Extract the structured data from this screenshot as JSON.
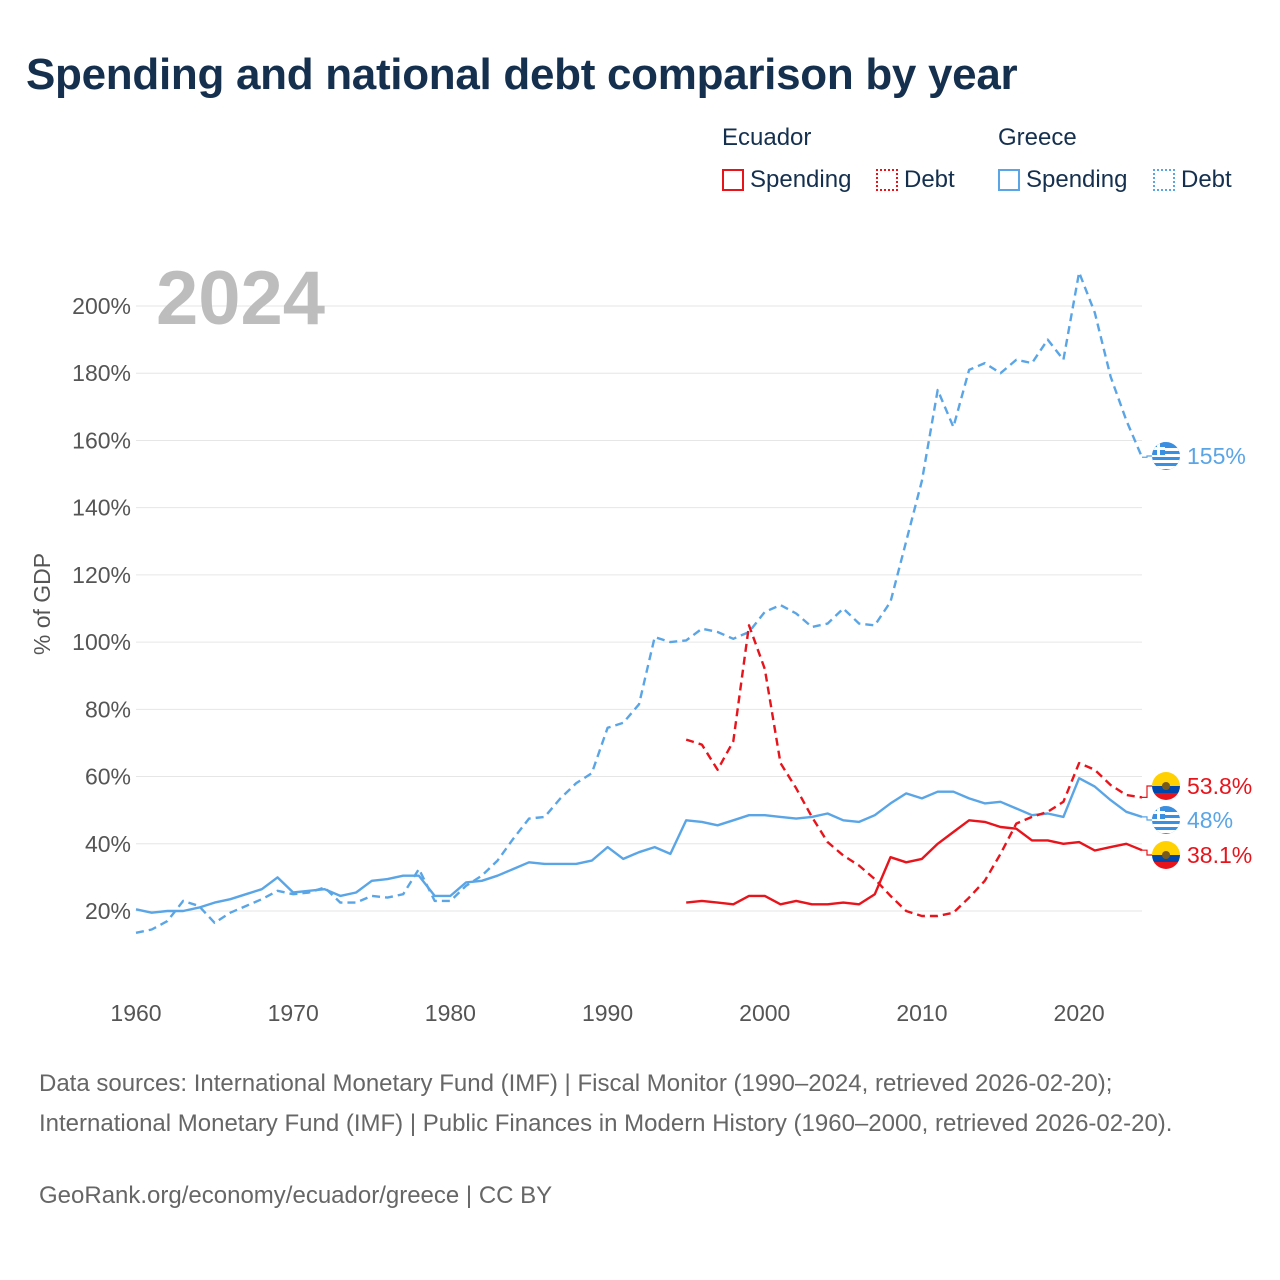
{
  "title": "Spending and national debt comparison by year",
  "legend": {
    "groups": [
      {
        "country": "Ecuador",
        "color": "#e8141c",
        "items": [
          {
            "label": "Spending",
            "style": "solid"
          },
          {
            "label": "Debt",
            "style": "dotted"
          }
        ]
      },
      {
        "country": "Greece",
        "color": "#5aa5e6",
        "items": [
          {
            "label": "Spending",
            "style": "solid"
          },
          {
            "label": "Debt",
            "style": "dotted"
          }
        ]
      }
    ]
  },
  "current_year": "2024",
  "sources": "Data sources: International Monetary Fund (IMF) | Fiscal Monitor (1990–2024, retrieved 2026-02-20); International Monetary Fund (IMF) | Public Finances in Modern History (1960–2000, retrieved 2026-02-20).",
  "credit": "GeoRank.org/economy/ecuador/greece | CC BY",
  "chart_data": {
    "type": "line",
    "title": "Spending and national debt comparison by year",
    "xlabel": "",
    "ylabel": "% of GDP",
    "xlim": [
      1960,
      2024
    ],
    "ylim": [
      0,
      210
    ],
    "x_ticks": [
      1960,
      1970,
      1980,
      1990,
      2000,
      2010,
      2020
    ],
    "y_ticks": [
      20,
      40,
      60,
      80,
      100,
      120,
      140,
      160,
      180,
      200
    ],
    "y_tick_labels": [
      "20%",
      "40%",
      "60%",
      "80%",
      "100%",
      "120%",
      "140%",
      "160%",
      "180%",
      "200%"
    ],
    "grid": "horizontal",
    "series": [
      {
        "name": "Greece Debt",
        "country": "Greece",
        "measure": "Debt",
        "color": "#5aa5e6",
        "dash": "dashed",
        "end_label": "155%",
        "x": [
          1960,
          1961,
          1962,
          1963,
          1964,
          1965,
          1966,
          1967,
          1968,
          1969,
          1970,
          1971,
          1972,
          1973,
          1974,
          1975,
          1976,
          1977,
          1978,
          1979,
          1980,
          1981,
          1982,
          1983,
          1984,
          1985,
          1986,
          1987,
          1988,
          1989,
          1990,
          1991,
          1992,
          1993,
          1994,
          1995,
          1996,
          1997,
          1998,
          1999,
          2000,
          2001,
          2002,
          2003,
          2004,
          2005,
          2006,
          2007,
          2008,
          2009,
          2010,
          2011,
          2012,
          2013,
          2014,
          2015,
          2016,
          2017,
          2018,
          2019,
          2020,
          2021,
          2022,
          2023,
          2024
        ],
        "y": [
          13.5,
          14.5,
          17,
          23,
          21.5,
          16.5,
          19.5,
          21.5,
          23.5,
          26,
          25,
          25.5,
          27,
          22.5,
          22.5,
          24.5,
          24,
          25,
          32.5,
          23,
          23,
          27.5,
          30.5,
          35,
          41.5,
          47.5,
          48,
          53.5,
          58,
          61,
          74.5,
          76,
          81.5,
          101.5,
          100,
          100.5,
          104,
          103,
          101,
          103,
          109,
          111,
          108.5,
          104.5,
          105.5,
          110,
          105.5,
          105,
          112,
          130,
          148,
          175,
          164,
          181,
          183,
          180,
          184,
          183,
          190,
          184,
          210,
          198,
          179,
          166,
          155
        ]
      },
      {
        "name": "Greece Spending",
        "country": "Greece",
        "measure": "Spending",
        "color": "#5aa5e6",
        "dash": "solid",
        "end_label": "48%",
        "x": [
          1960,
          1961,
          1962,
          1963,
          1964,
          1965,
          1966,
          1967,
          1968,
          1969,
          1970,
          1971,
          1972,
          1973,
          1974,
          1975,
          1976,
          1977,
          1978,
          1979,
          1980,
          1981,
          1982,
          1983,
          1984,
          1985,
          1986,
          1987,
          1988,
          1989,
          1990,
          1991,
          1992,
          1993,
          1994,
          1995,
          1996,
          1997,
          1998,
          1999,
          2000,
          2001,
          2002,
          2003,
          2004,
          2005,
          2006,
          2007,
          2008,
          2009,
          2010,
          2011,
          2012,
          2013,
          2014,
          2015,
          2016,
          2017,
          2018,
          2019,
          2020,
          2021,
          2022,
          2023,
          2024
        ],
        "y": [
          20.5,
          19.5,
          20,
          20,
          21,
          22.5,
          23.5,
          25,
          26.5,
          30,
          25.5,
          26,
          26.5,
          24.5,
          25.5,
          29,
          29.5,
          30.5,
          30.5,
          24.5,
          24.5,
          28.5,
          29,
          30.5,
          32.5,
          34.5,
          34,
          34,
          34,
          35,
          39,
          35.5,
          37.5,
          39,
          37,
          47,
          46.5,
          45.5,
          47,
          48.5,
          48.5,
          48,
          47.5,
          48,
          49,
          47,
          46.5,
          48.5,
          52,
          55,
          53.5,
          55.5,
          55.5,
          53.5,
          52,
          52.5,
          50.5,
          48.5,
          49,
          48,
          59.5,
          57,
          53,
          49.5,
          48
        ]
      },
      {
        "name": "Ecuador Debt",
        "country": "Ecuador",
        "measure": "Debt",
        "color": "#e8141c",
        "dash": "dashed",
        "end_label": "53.8%",
        "x": [
          1995,
          1996,
          1997,
          1998,
          1999,
          2000,
          2001,
          2002,
          2003,
          2004,
          2005,
          2006,
          2007,
          2008,
          2009,
          2010,
          2011,
          2012,
          2013,
          2014,
          2015,
          2016,
          2017,
          2018,
          2019,
          2020,
          2021,
          2022,
          2023,
          2024
        ],
        "y": [
          71,
          69.5,
          62,
          70.5,
          105,
          92,
          64,
          56.5,
          48,
          40.5,
          36.5,
          33.5,
          29.5,
          24.5,
          20,
          18.5,
          18.5,
          19.5,
          24,
          29,
          37,
          46,
          48,
          49.5,
          52.5,
          64,
          62,
          57.5,
          54.5,
          53.8
        ]
      },
      {
        "name": "Ecuador Spending",
        "country": "Ecuador",
        "measure": "Spending",
        "color": "#e8141c",
        "dash": "solid",
        "end_label": "38.1%",
        "x": [
          1995,
          1996,
          1997,
          1998,
          1999,
          2000,
          2001,
          2002,
          2003,
          2004,
          2005,
          2006,
          2007,
          2008,
          2009,
          2010,
          2011,
          2012,
          2013,
          2014,
          2015,
          2016,
          2017,
          2018,
          2019,
          2020,
          2021,
          2022,
          2023,
          2024
        ],
        "y": [
          22.5,
          23,
          22.5,
          22,
          24.5,
          24.5,
          22,
          23,
          22,
          22,
          22.5,
          22,
          25,
          36,
          34.5,
          35.5,
          40,
          43.5,
          47,
          46.5,
          45,
          44.5,
          41,
          41,
          40,
          40.5,
          38,
          39,
          40,
          38.1
        ]
      }
    ]
  }
}
